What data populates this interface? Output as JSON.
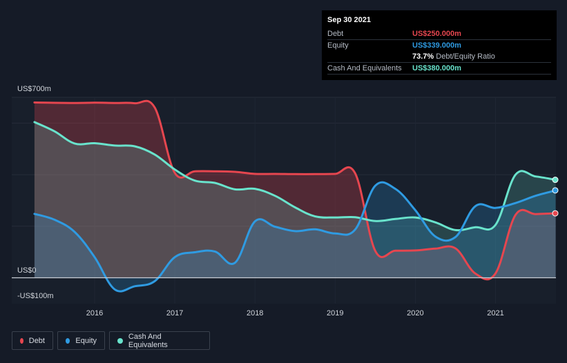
{
  "tooltip": {
    "date": "Sep 30 2021",
    "debt_label": "Debt",
    "debt_value": "US$250.000m",
    "equity_label": "Equity",
    "equity_value": "US$339.000m",
    "ratio_value": "73.7%",
    "ratio_label": "Debt/Equity Ratio",
    "cash_label": "Cash And Equivalents",
    "cash_value": "US$380.000m"
  },
  "legend": {
    "debt": "Debt",
    "equity": "Equity",
    "cash": "Cash And Equivalents"
  },
  "colors": {
    "debt": "#e6464f",
    "equity": "#2f9be2",
    "cash": "#69e3cc",
    "background": "#151b27",
    "plot": "#181f2b"
  },
  "chart_data": {
    "type": "area",
    "title": "",
    "xlabel": "",
    "ylabel": "",
    "ylim": [
      -100,
      700
    ],
    "y_tick_labels": [
      {
        "value": 700,
        "label": "US$700m"
      },
      {
        "value": 0,
        "label": "US$0"
      },
      {
        "value": -100,
        "label": "-US$100m"
      }
    ],
    "x_tick_labels": [
      {
        "value": 2016,
        "label": "2016"
      },
      {
        "value": 2017,
        "label": "2017"
      },
      {
        "value": 2018,
        "label": "2018"
      },
      {
        "value": 2019,
        "label": "2019"
      },
      {
        "value": 2020,
        "label": "2020"
      },
      {
        "value": 2021,
        "label": "2021"
      }
    ],
    "grid": true,
    "legend_position": "bottom-left",
    "series": [
      {
        "name": "Debt",
        "points": [
          [
            2015.25,
            680
          ],
          [
            2015.75,
            678
          ],
          [
            2016.0,
            679
          ],
          [
            2016.25,
            678
          ],
          [
            2016.5,
            677
          ],
          [
            2016.75,
            660
          ],
          [
            2017.0,
            407
          ],
          [
            2017.25,
            413
          ],
          [
            2017.5,
            413
          ],
          [
            2017.75,
            411
          ],
          [
            2018.0,
            403
          ],
          [
            2018.25,
            403
          ],
          [
            2018.5,
            402
          ],
          [
            2018.75,
            402
          ],
          [
            2019.0,
            403
          ],
          [
            2019.25,
            405
          ],
          [
            2019.5,
            104
          ],
          [
            2019.75,
            105
          ],
          [
            2020.0,
            106
          ],
          [
            2020.25,
            113
          ],
          [
            2020.5,
            114
          ],
          [
            2020.75,
            16
          ],
          [
            2021.0,
            17
          ],
          [
            2021.25,
            244
          ],
          [
            2021.5,
            247
          ],
          [
            2021.75,
            250
          ]
        ]
      },
      {
        "name": "Equity",
        "points": [
          [
            2015.25,
            248
          ],
          [
            2015.5,
            225
          ],
          [
            2015.75,
            178
          ],
          [
            2016.0,
            80
          ],
          [
            2016.25,
            -45
          ],
          [
            2016.5,
            -33
          ],
          [
            2016.75,
            -13
          ],
          [
            2017.0,
            80
          ],
          [
            2017.25,
            99
          ],
          [
            2017.5,
            102
          ],
          [
            2017.75,
            58
          ],
          [
            2018.0,
            219
          ],
          [
            2018.25,
            198
          ],
          [
            2018.5,
            181
          ],
          [
            2018.75,
            188
          ],
          [
            2019.0,
            172
          ],
          [
            2019.25,
            187
          ],
          [
            2019.5,
            357
          ],
          [
            2019.75,
            345
          ],
          [
            2020.0,
            262
          ],
          [
            2020.25,
            160
          ],
          [
            2020.5,
            158
          ],
          [
            2020.75,
            278
          ],
          [
            2021.0,
            271
          ],
          [
            2021.25,
            290
          ],
          [
            2021.5,
            318
          ],
          [
            2021.75,
            339
          ]
        ]
      },
      {
        "name": "Cash And Equivalents",
        "points": [
          [
            2015.25,
            604
          ],
          [
            2015.5,
            568
          ],
          [
            2015.75,
            521
          ],
          [
            2016.0,
            522
          ],
          [
            2016.25,
            513
          ],
          [
            2016.5,
            510
          ],
          [
            2016.75,
            478
          ],
          [
            2017.0,
            420
          ],
          [
            2017.25,
            377
          ],
          [
            2017.5,
            368
          ],
          [
            2017.75,
            343
          ],
          [
            2018.0,
            345
          ],
          [
            2018.25,
            318
          ],
          [
            2018.5,
            273
          ],
          [
            2018.75,
            238
          ],
          [
            2019.0,
            234
          ],
          [
            2019.25,
            235
          ],
          [
            2019.5,
            220
          ],
          [
            2019.75,
            228
          ],
          [
            2020.0,
            234
          ],
          [
            2020.25,
            215
          ],
          [
            2020.5,
            185
          ],
          [
            2020.75,
            196
          ],
          [
            2021.0,
            205
          ],
          [
            2021.25,
            400
          ],
          [
            2021.5,
            393
          ],
          [
            2021.75,
            380
          ]
        ]
      }
    ]
  }
}
